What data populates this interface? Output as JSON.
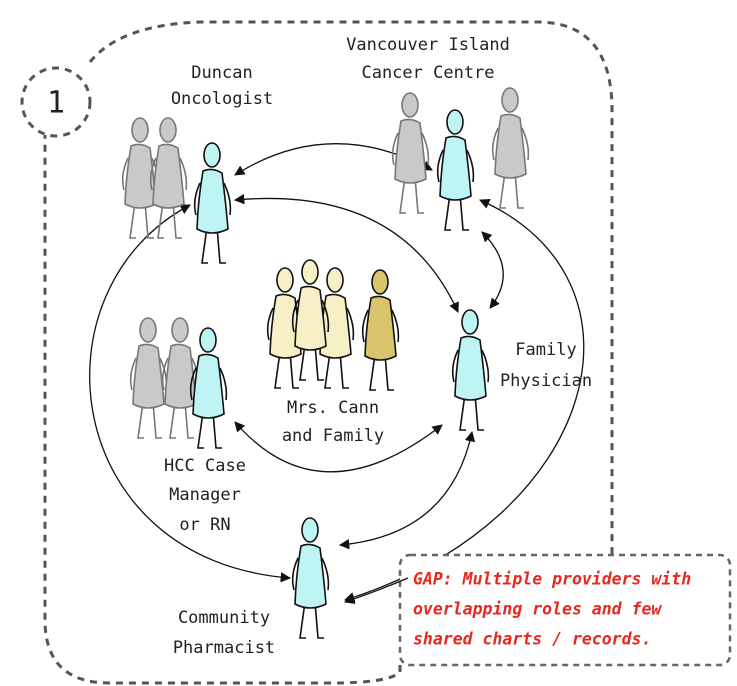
{
  "step": "1",
  "nodes": [
    {
      "label": [
        "Duncan",
        "Oncologist"
      ]
    },
    {
      "label": [
        "Vancouver Island",
        "Cancer Centre"
      ]
    },
    {
      "label": [
        "Family",
        "Physician"
      ]
    },
    {
      "label": [
        "Mrs. Cann",
        "and Family"
      ]
    },
    {
      "label": [
        "HCC Case",
        "Manager",
        "or RN"
      ]
    },
    {
      "label": [
        "Community",
        "Pharmacist"
      ]
    }
  ],
  "gap_note": [
    "GAP: Multiple providers with",
    "overlapping roles and few",
    "shared charts / records."
  ]
}
